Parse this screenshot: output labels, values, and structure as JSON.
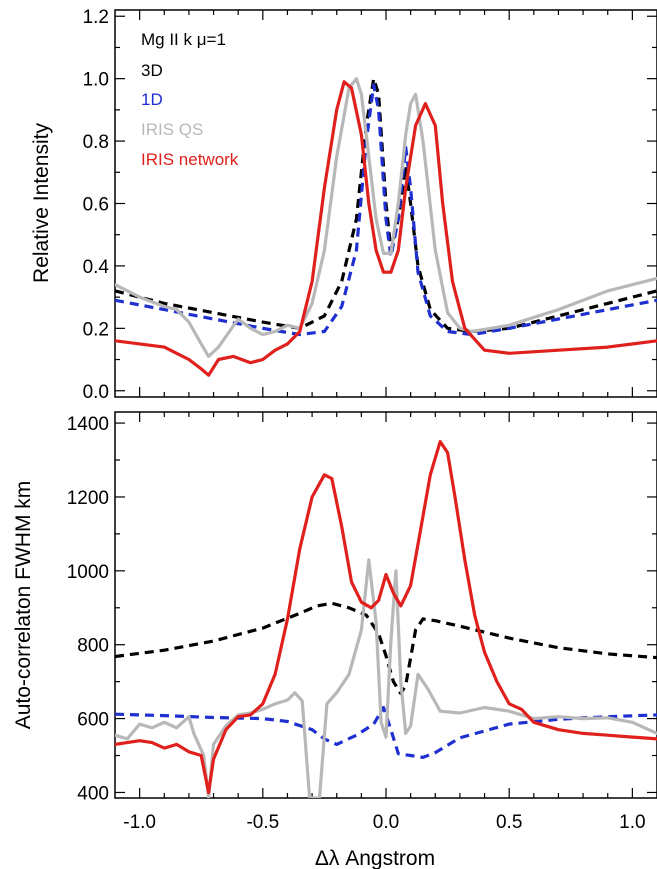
{
  "chart_data": [
    {
      "type": "line",
      "title": "",
      "xlabel": "",
      "ylabel": "Relative Intensity",
      "xlim": [
        -1.1,
        1.1
      ],
      "ylim": [
        -0.02,
        1.22
      ],
      "xticks": [
        "-1.0",
        "-0.5",
        "0.0",
        "0.5",
        "1.0"
      ],
      "xtick_values": [
        -1.0,
        -0.5,
        0.0,
        0.5,
        1.0
      ],
      "yticks": [
        "0.0",
        "0.2",
        "0.4",
        "0.6",
        "0.8",
        "1.0",
        "1.2"
      ],
      "ytick_values": [
        0.0,
        0.2,
        0.4,
        0.6,
        0.8,
        1.0,
        1.2
      ],
      "legend": {
        "placement": "top-left",
        "header": "Mg II k μ=1",
        "entries": [
          {
            "label": "3D",
            "color": "#000000"
          },
          {
            "label": "1D",
            "color": "#1f2fd0"
          },
          {
            "label": "IRIS QS",
            "color": "#b8b8b8"
          },
          {
            "label": "IRIS network",
            "color": "#e0201c"
          }
        ]
      },
      "series": [
        {
          "name": "3D",
          "color": "#000000",
          "dash": true,
          "x": [
            -1.1,
            -0.9,
            -0.7,
            -0.5,
            -0.35,
            -0.25,
            -0.18,
            -0.12,
            -0.08,
            -0.05,
            -0.03,
            0.0,
            0.02,
            0.05,
            0.08,
            0.1,
            0.13,
            0.18,
            0.25,
            0.35,
            0.5,
            0.7,
            0.9,
            1.1
          ],
          "y": [
            0.32,
            0.28,
            0.25,
            0.22,
            0.2,
            0.24,
            0.35,
            0.55,
            0.85,
            1.0,
            0.95,
            0.6,
            0.45,
            0.55,
            0.72,
            0.6,
            0.4,
            0.26,
            0.2,
            0.19,
            0.2,
            0.24,
            0.28,
            0.32
          ]
        },
        {
          "name": "1D",
          "color": "#1f2fd0",
          "dash": true,
          "x": [
            -1.1,
            -0.9,
            -0.7,
            -0.5,
            -0.35,
            -0.25,
            -0.18,
            -0.12,
            -0.08,
            -0.05,
            -0.03,
            0.0,
            0.02,
            0.05,
            0.08,
            0.1,
            0.13,
            0.18,
            0.25,
            0.35,
            0.5,
            0.7,
            0.9,
            1.1
          ],
          "y": [
            0.29,
            0.26,
            0.23,
            0.2,
            0.18,
            0.19,
            0.27,
            0.45,
            0.8,
            0.98,
            0.9,
            0.55,
            0.43,
            0.55,
            0.78,
            0.65,
            0.38,
            0.24,
            0.19,
            0.18,
            0.2,
            0.23,
            0.26,
            0.29
          ]
        },
        {
          "name": "IRIS QS",
          "color": "#b8b8b8",
          "dash": false,
          "x": [
            -1.1,
            -1.0,
            -0.9,
            -0.85,
            -0.8,
            -0.75,
            -0.72,
            -0.68,
            -0.6,
            -0.55,
            -0.5,
            -0.45,
            -0.4,
            -0.35,
            -0.3,
            -0.25,
            -0.2,
            -0.15,
            -0.12,
            -0.1,
            -0.07,
            -0.04,
            -0.01,
            0.02,
            0.05,
            0.08,
            0.1,
            0.12,
            0.15,
            0.2,
            0.25,
            0.3,
            0.35,
            0.5,
            0.7,
            0.9,
            1.1
          ],
          "y": [
            0.34,
            0.3,
            0.27,
            0.26,
            0.22,
            0.15,
            0.11,
            0.14,
            0.23,
            0.2,
            0.18,
            0.19,
            0.21,
            0.2,
            0.28,
            0.45,
            0.75,
            0.97,
            1.0,
            0.95,
            0.75,
            0.55,
            0.44,
            0.44,
            0.6,
            0.82,
            0.92,
            0.95,
            0.8,
            0.45,
            0.25,
            0.2,
            0.19,
            0.21,
            0.26,
            0.32,
            0.36
          ]
        },
        {
          "name": "IRIS network",
          "color": "#e0201c",
          "dash": false,
          "x": [
            -1.1,
            -1.0,
            -0.9,
            -0.85,
            -0.8,
            -0.75,
            -0.72,
            -0.68,
            -0.62,
            -0.55,
            -0.5,
            -0.45,
            -0.4,
            -0.35,
            -0.3,
            -0.25,
            -0.2,
            -0.17,
            -0.14,
            -0.1,
            -0.07,
            -0.04,
            -0.01,
            0.02,
            0.05,
            0.08,
            0.12,
            0.16,
            0.2,
            0.23,
            0.27,
            0.32,
            0.4,
            0.5,
            0.7,
            0.9,
            1.1
          ],
          "y": [
            0.16,
            0.15,
            0.14,
            0.12,
            0.1,
            0.07,
            0.05,
            0.1,
            0.11,
            0.09,
            0.1,
            0.13,
            0.15,
            0.19,
            0.35,
            0.65,
            0.9,
            0.99,
            0.97,
            0.82,
            0.6,
            0.45,
            0.38,
            0.38,
            0.45,
            0.65,
            0.85,
            0.92,
            0.85,
            0.6,
            0.35,
            0.2,
            0.13,
            0.12,
            0.13,
            0.14,
            0.16
          ]
        }
      ]
    },
    {
      "type": "line",
      "title": "",
      "xlabel": "Δλ Angstrom",
      "ylabel": "Auto-correlaton FWHM km",
      "xlim": [
        -1.1,
        1.1
      ],
      "ylim": [
        385,
        1430
      ],
      "xticks": [
        "-1.0",
        "-0.5",
        "0.0",
        "0.5",
        "1.0"
      ],
      "xtick_values": [
        -1.0,
        -0.5,
        0.0,
        0.5,
        1.0
      ],
      "yticks": [
        "400",
        "600",
        "800",
        "1000",
        "1200",
        "1400"
      ],
      "ytick_values": [
        400,
        600,
        800,
        1000,
        1200,
        1400
      ],
      "series": [
        {
          "name": "3D",
          "color": "#000000",
          "dash": true,
          "x": [
            -1.1,
            -0.9,
            -0.7,
            -0.5,
            -0.35,
            -0.28,
            -0.22,
            -0.15,
            -0.08,
            -0.03,
            0.0,
            0.03,
            0.06,
            0.08,
            0.12,
            0.15,
            0.2,
            0.3,
            0.5,
            0.7,
            0.9,
            1.1
          ],
          "y": [
            768,
            785,
            810,
            845,
            885,
            905,
            912,
            900,
            880,
            830,
            770,
            700,
            668,
            690,
            840,
            870,
            865,
            850,
            818,
            792,
            775,
            765
          ]
        },
        {
          "name": "1D",
          "color": "#1f2fd0",
          "dash": true,
          "x": [
            -1.1,
            -0.9,
            -0.7,
            -0.5,
            -0.4,
            -0.3,
            -0.25,
            -0.2,
            -0.12,
            -0.05,
            -0.01,
            0.02,
            0.05,
            0.1,
            0.15,
            0.2,
            0.3,
            0.5,
            0.7,
            0.9,
            1.1
          ],
          "y": [
            612,
            608,
            603,
            600,
            592,
            570,
            545,
            530,
            555,
            585,
            630,
            570,
            505,
            500,
            495,
            508,
            548,
            585,
            598,
            605,
            610
          ]
        },
        {
          "name": "IRIS QS",
          "color": "#b8b8b8",
          "dash": false,
          "x": [
            -1.1,
            -1.05,
            -1.0,
            -0.95,
            -0.9,
            -0.85,
            -0.8,
            -0.78,
            -0.74,
            -0.72,
            -0.7,
            -0.65,
            -0.6,
            -0.55,
            -0.5,
            -0.45,
            -0.4,
            -0.37,
            -0.34,
            -0.31,
            -0.29,
            -0.27,
            -0.24,
            -0.2,
            -0.15,
            -0.1,
            -0.07,
            -0.04,
            -0.02,
            0.0,
            0.02,
            0.04,
            0.06,
            0.08,
            0.1,
            0.13,
            0.17,
            0.22,
            0.3,
            0.4,
            0.5,
            0.6,
            0.7,
            0.8,
            0.9,
            1.0,
            1.1
          ],
          "y": [
            555,
            545,
            585,
            575,
            590,
            575,
            605,
            560,
            500,
            385,
            530,
            580,
            610,
            615,
            625,
            640,
            650,
            670,
            648,
            385,
            385,
            385,
            640,
            670,
            720,
            840,
            1030,
            860,
            590,
            550,
            810,
            1000,
            700,
            560,
            580,
            720,
            680,
            620,
            615,
            630,
            620,
            600,
            605,
            600,
            602,
            590,
            560
          ]
        },
        {
          "name": "IRIS network",
          "color": "#e0201c",
          "dash": false,
          "x": [
            -1.1,
            -1.05,
            -1.0,
            -0.95,
            -0.9,
            -0.85,
            -0.8,
            -0.75,
            -0.72,
            -0.7,
            -0.65,
            -0.6,
            -0.55,
            -0.5,
            -0.45,
            -0.4,
            -0.35,
            -0.3,
            -0.25,
            -0.22,
            -0.18,
            -0.14,
            -0.1,
            -0.06,
            -0.03,
            0.0,
            0.03,
            0.06,
            0.1,
            0.14,
            0.18,
            0.22,
            0.25,
            0.28,
            0.32,
            0.36,
            0.4,
            0.45,
            0.5,
            0.55,
            0.6,
            0.7,
            0.8,
            0.9,
            1.0,
            1.1
          ],
          "y": [
            530,
            535,
            540,
            535,
            520,
            530,
            510,
            500,
            400,
            490,
            570,
            605,
            610,
            640,
            720,
            870,
            1060,
            1200,
            1260,
            1250,
            1120,
            970,
            915,
            900,
            920,
            990,
            940,
            905,
            960,
            1110,
            1260,
            1350,
            1320,
            1200,
            1030,
            880,
            780,
            700,
            640,
            625,
            590,
            570,
            560,
            555,
            550,
            545
          ]
        }
      ]
    }
  ]
}
